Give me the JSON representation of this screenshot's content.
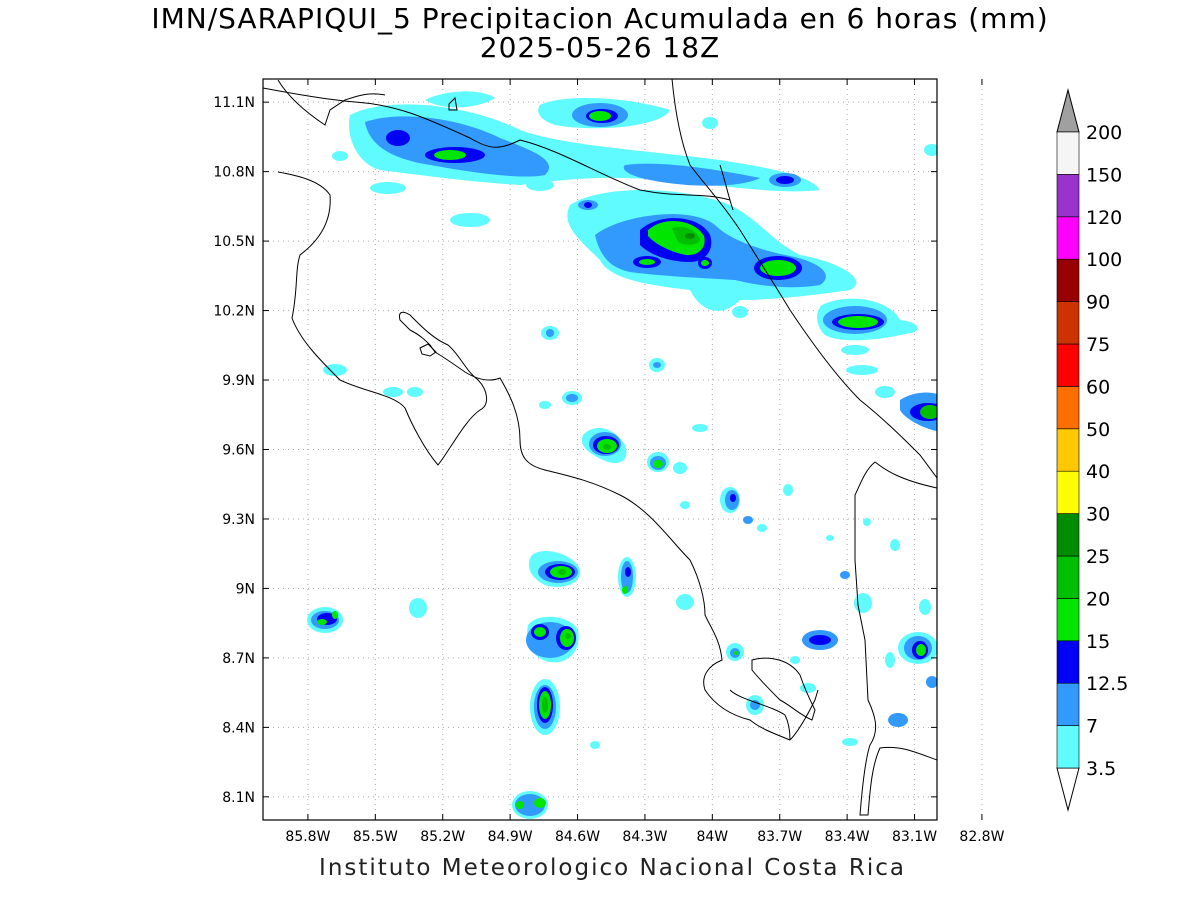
{
  "title": {
    "line1": "IMN/SARAPIQUI_5 Precipitacion Acumulada en 6 horas (mm)",
    "line2": "2025-05-26 18Z"
  },
  "credit": "Instituto Meteorologico Nacional Costa Rica",
  "map": {
    "lon_range": [
      -86.0,
      -83.0
    ],
    "lat_range": [
      8.0,
      11.2
    ],
    "grid": true,
    "lon_ticks": [
      {
        "value": -85.8,
        "label": "85.8W"
      },
      {
        "value": -85.5,
        "label": "85.5W"
      },
      {
        "value": -85.2,
        "label": "85.2W"
      },
      {
        "value": -84.9,
        "label": "84.9W"
      },
      {
        "value": -84.6,
        "label": "84.6W"
      },
      {
        "value": -84.3,
        "label": "84.3W"
      },
      {
        "value": -84.0,
        "label": "84W"
      },
      {
        "value": -83.7,
        "label": "83.7W"
      },
      {
        "value": -83.4,
        "label": "83.4W"
      },
      {
        "value": -83.1,
        "label": "83.1W"
      },
      {
        "value": -82.8,
        "label": "82.8W"
      }
    ],
    "lat_ticks": [
      {
        "value": 11.1,
        "label": "11.1N"
      },
      {
        "value": 10.8,
        "label": "10.8N"
      },
      {
        "value": 10.5,
        "label": "10.5N"
      },
      {
        "value": 10.2,
        "label": "10.2N"
      },
      {
        "value": 9.9,
        "label": "9.9N"
      },
      {
        "value": 9.6,
        "label": "9.6N"
      },
      {
        "value": 9.3,
        "label": "9.3N"
      },
      {
        "value": 9.0,
        "label": "9N"
      },
      {
        "value": 8.7,
        "label": "8.7N"
      },
      {
        "value": 8.4,
        "label": "8.4N"
      },
      {
        "value": 8.1,
        "label": "8.1N"
      }
    ]
  },
  "colorbar": {
    "levels": [
      {
        "label": "3.5",
        "color": "#5ffbff"
      },
      {
        "label": "7",
        "color": "#3299fd"
      },
      {
        "label": "12.5",
        "color": "#0000f5"
      },
      {
        "label": "15",
        "color": "#00e600"
      },
      {
        "label": "20",
        "color": "#00be00"
      },
      {
        "label": "25",
        "color": "#008c00"
      },
      {
        "label": "30",
        "color": "#ffff00"
      },
      {
        "label": "40",
        "color": "#ffc800"
      },
      {
        "label": "50",
        "color": "#ff6e00"
      },
      {
        "label": "60",
        "color": "#ff0000"
      },
      {
        "label": "75",
        "color": "#cc3300"
      },
      {
        "label": "90",
        "color": "#960000"
      },
      {
        "label": "100",
        "color": "#ff00ff"
      },
      {
        "label": "120",
        "color": "#9933cc"
      },
      {
        "label": "150",
        "color": "#f5f5f5"
      },
      {
        "label": "200",
        "color": "#a0a0a0"
      }
    ]
  }
}
